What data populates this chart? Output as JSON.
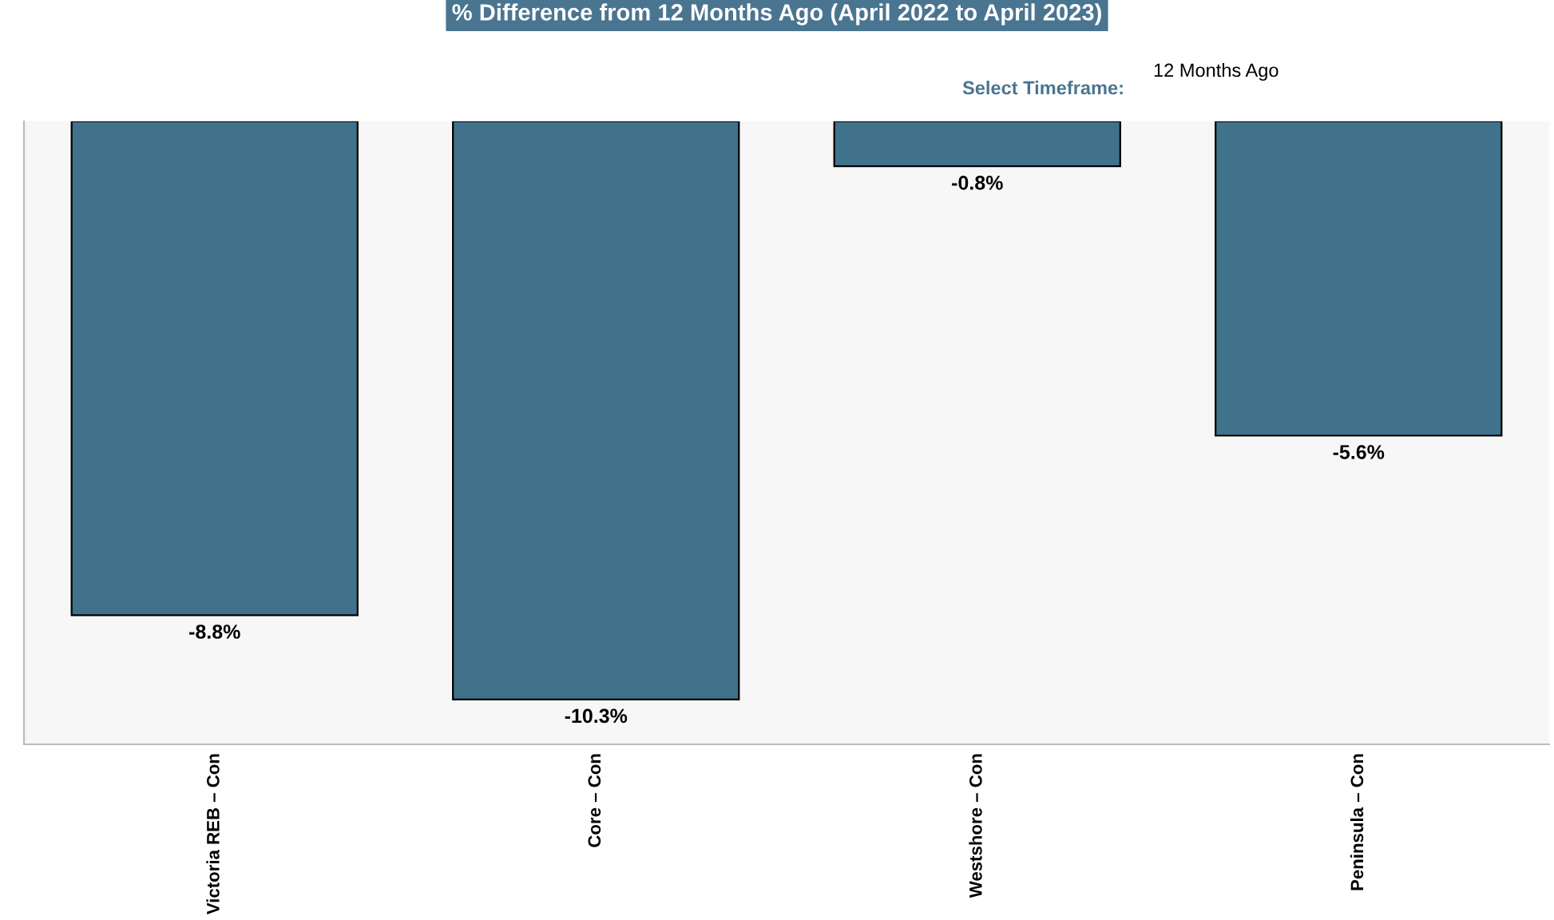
{
  "chart_data": {
    "type": "bar",
    "title": "% Difference from 12 Months Ago (April 2022 to April 2023)",
    "annotations": [
      "Select Timeframe:",
      "12 Months Ago"
    ],
    "categories": [
      "Victoria REB – Con",
      "Core – Con",
      "Westshore – Con",
      "Peninsula – Con"
    ],
    "values": [
      -8.8,
      -10.3,
      -0.8,
      -5.6
    ],
    "value_labels": [
      "-8.8%",
      "-10.3%",
      "-0.8%",
      "-5.6%"
    ],
    "color": "#41728c",
    "ylim": [
      -11.1,
      0
    ],
    "tick_labels": "x",
    "grid": false,
    "legend": false
  }
}
